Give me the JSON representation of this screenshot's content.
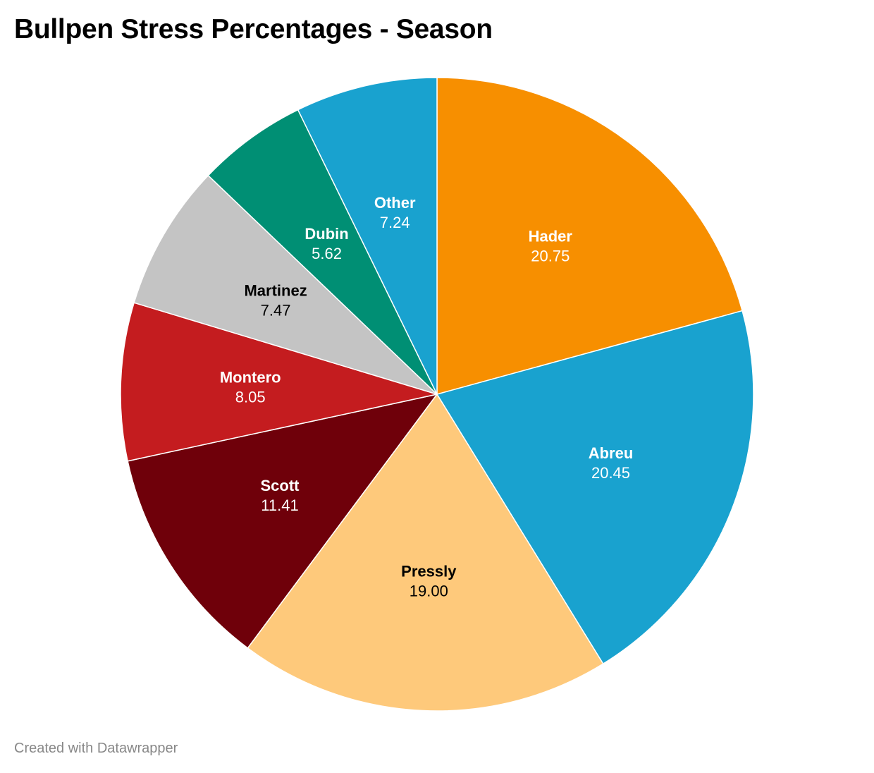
{
  "chart_data": {
    "type": "pie",
    "title": "Bullpen Stress Percentages - Season",
    "categories": [
      "Hader",
      "Abreu",
      "Pressly",
      "Scott",
      "Montero",
      "Martinez",
      "Dubin",
      "Other"
    ],
    "values": [
      20.75,
      20.45,
      19.0,
      11.41,
      8.05,
      7.47,
      5.62,
      7.24
    ],
    "value_labels": [
      "20.75",
      "20.45",
      "19.00",
      "11.41",
      "8.05",
      "7.47",
      "5.62",
      "7.24"
    ],
    "colors": [
      "#F78F00",
      "#19A2CF",
      "#FEC97B",
      "#6F000A",
      "#C41C1F",
      "#C4C4C4",
      "#008F74",
      "#19A2CF"
    ],
    "label_colors": [
      "#FFFFFF",
      "#FFFFFF",
      "#000000",
      "#FFFFFF",
      "#FFFFFF",
      "#000000",
      "#FFFFFF",
      "#FFFFFF"
    ],
    "start": "12 o'clock",
    "direction": "clockwise"
  },
  "footer": {
    "credit": "Created with Datawrapper"
  }
}
